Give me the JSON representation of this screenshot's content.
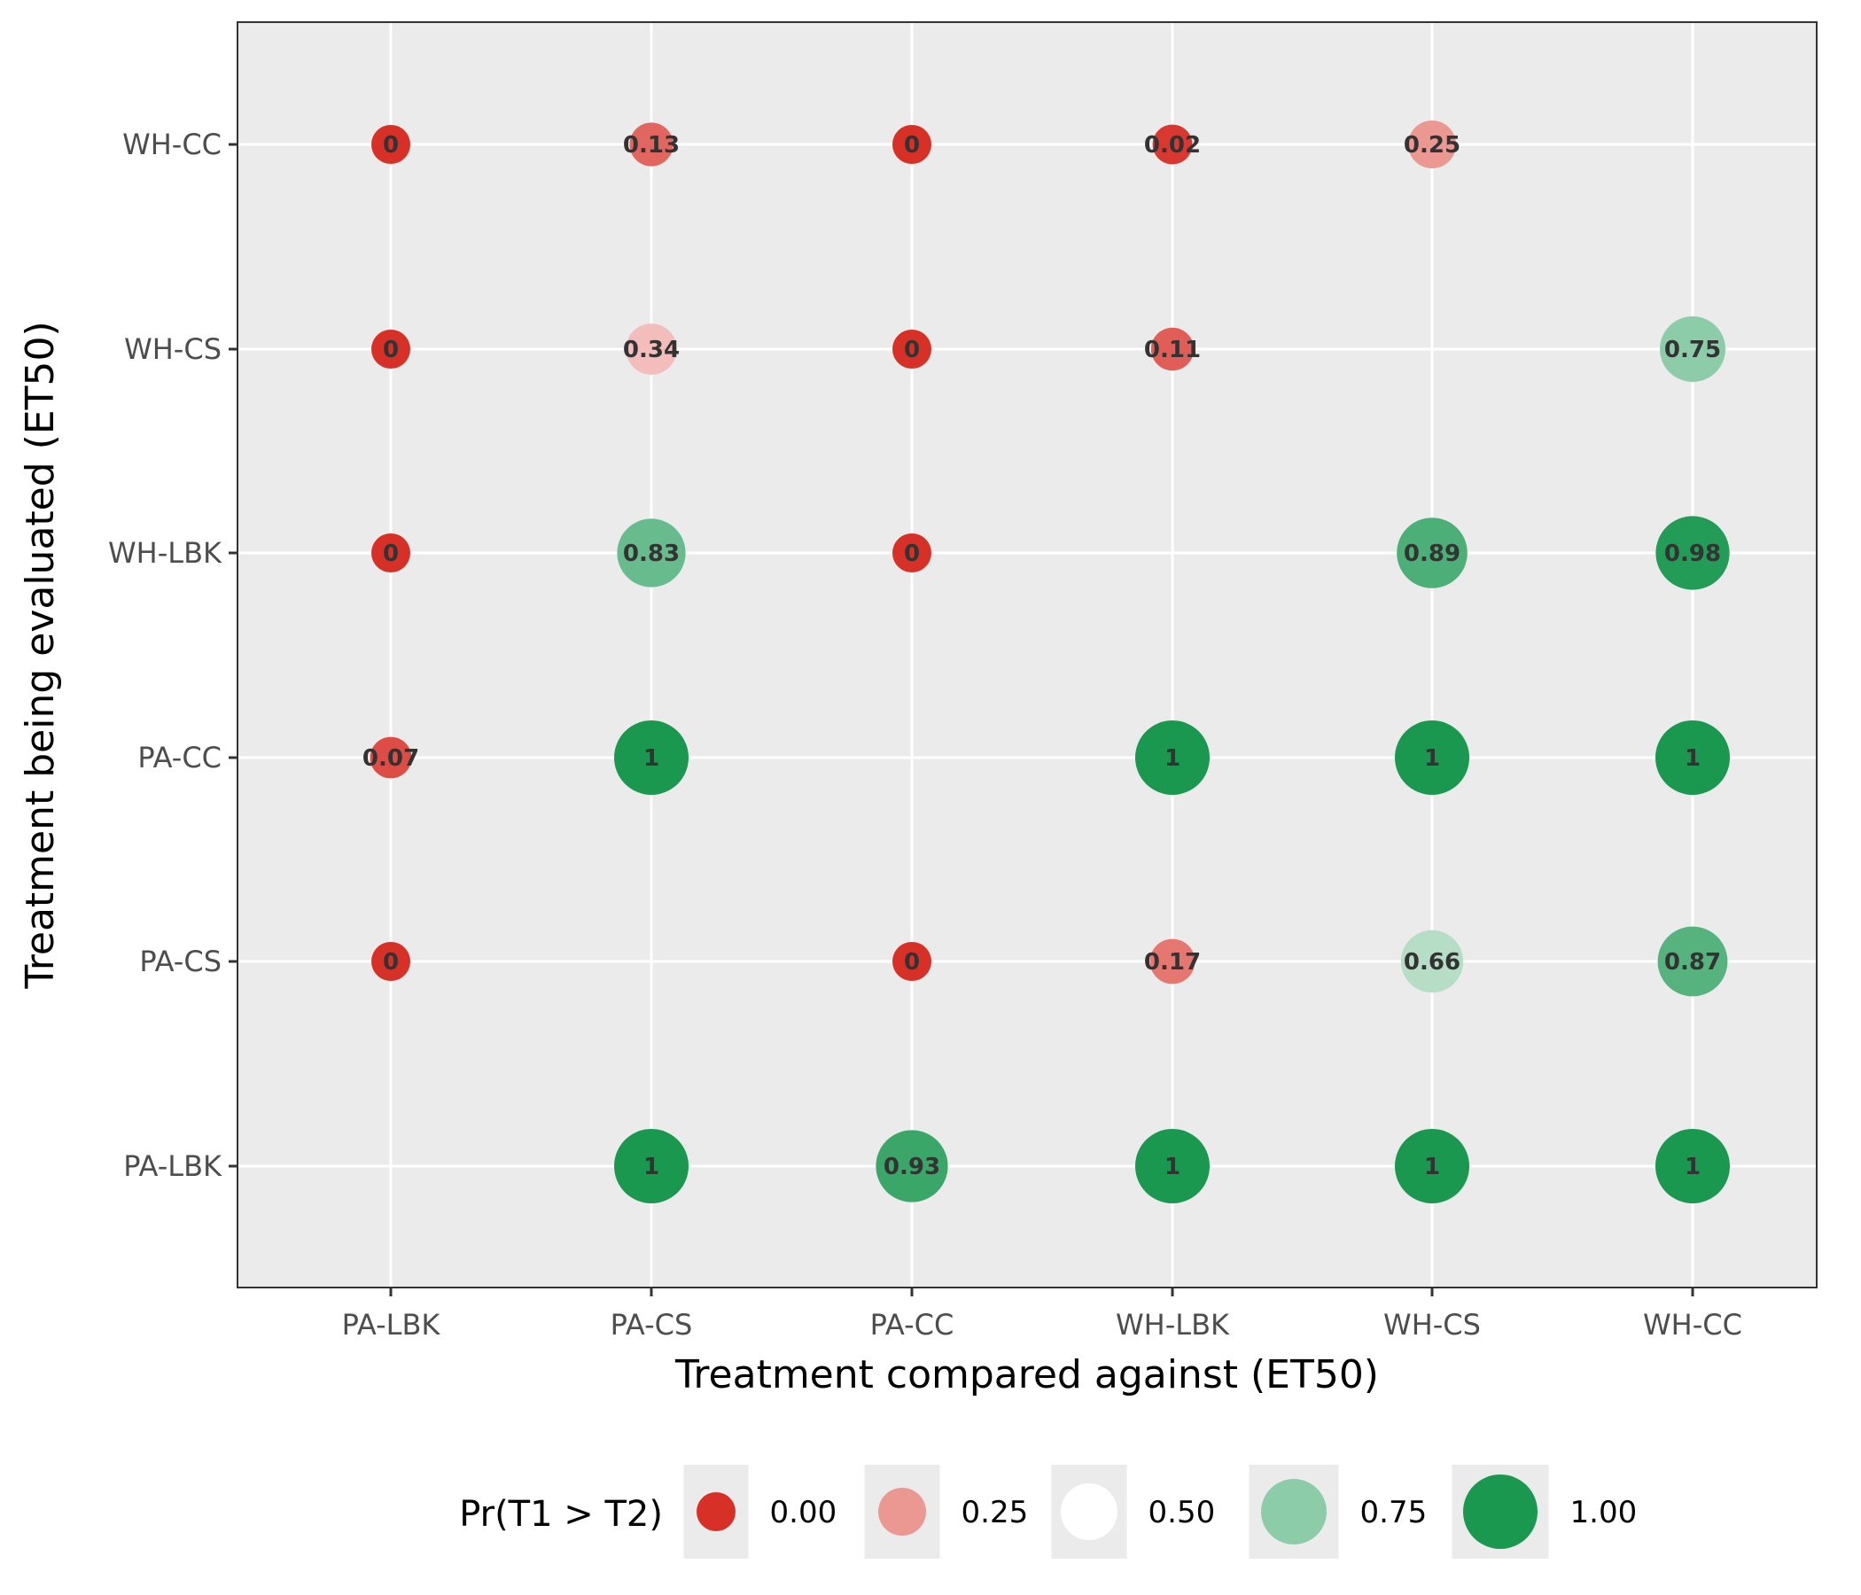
{
  "chart_data": {
    "type": "scatter",
    "xlabel": "Treatment compared against (ET50)",
    "ylabel": "Treatment being evaluated (ET50)",
    "x_categories": [
      "PA-LBK",
      "PA-CS",
      "PA-CC",
      "WH-LBK",
      "WH-CS",
      "WH-CC"
    ],
    "y_categories": [
      "PA-LBK",
      "PA-CS",
      "PA-CC",
      "WH-LBK",
      "WH-CS",
      "WH-CC"
    ],
    "grid": true,
    "legend_position": "bottom",
    "legend": {
      "title": "Pr(T1 > T2)",
      "values": [
        0.0,
        0.25,
        0.5,
        0.75,
        1.0
      ],
      "labels": [
        "0.00",
        "0.25",
        "0.50",
        "0.75",
        "1.00"
      ]
    },
    "color_scale": {
      "low": "#d73027",
      "mid": "#ffffff",
      "high": "#1a9850"
    },
    "points": [
      {
        "x": "PA-LBK",
        "y": "WH-CC",
        "value": 0,
        "label": "0"
      },
      {
        "x": "PA-CS",
        "y": "WH-CC",
        "value": 0.13,
        "label": "0.13"
      },
      {
        "x": "PA-CC",
        "y": "WH-CC",
        "value": 0,
        "label": "0"
      },
      {
        "x": "WH-LBK",
        "y": "WH-CC",
        "value": 0.02,
        "label": "0.02"
      },
      {
        "x": "WH-CS",
        "y": "WH-CC",
        "value": 0.25,
        "label": "0.25"
      },
      {
        "x": "PA-LBK",
        "y": "WH-CS",
        "value": 0,
        "label": "0"
      },
      {
        "x": "PA-CS",
        "y": "WH-CS",
        "value": 0.34,
        "label": "0.34"
      },
      {
        "x": "PA-CC",
        "y": "WH-CS",
        "value": 0,
        "label": "0"
      },
      {
        "x": "WH-LBK",
        "y": "WH-CS",
        "value": 0.11,
        "label": "0.11"
      },
      {
        "x": "WH-CC",
        "y": "WH-CS",
        "value": 0.75,
        "label": "0.75"
      },
      {
        "x": "PA-LBK",
        "y": "WH-LBK",
        "value": 0,
        "label": "0"
      },
      {
        "x": "PA-CS",
        "y": "WH-LBK",
        "value": 0.83,
        "label": "0.83"
      },
      {
        "x": "PA-CC",
        "y": "WH-LBK",
        "value": 0,
        "label": "0"
      },
      {
        "x": "WH-CS",
        "y": "WH-LBK",
        "value": 0.89,
        "label": "0.89"
      },
      {
        "x": "WH-CC",
        "y": "WH-LBK",
        "value": 0.98,
        "label": "0.98"
      },
      {
        "x": "PA-LBK",
        "y": "PA-CC",
        "value": 0.07,
        "label": "0.07"
      },
      {
        "x": "PA-CS",
        "y": "PA-CC",
        "value": 1,
        "label": "1"
      },
      {
        "x": "WH-LBK",
        "y": "PA-CC",
        "value": 1,
        "label": "1"
      },
      {
        "x": "WH-CS",
        "y": "PA-CC",
        "value": 1,
        "label": "1"
      },
      {
        "x": "WH-CC",
        "y": "PA-CC",
        "value": 1,
        "label": "1"
      },
      {
        "x": "PA-LBK",
        "y": "PA-CS",
        "value": 0,
        "label": "0"
      },
      {
        "x": "PA-CC",
        "y": "PA-CS",
        "value": 0,
        "label": "0"
      },
      {
        "x": "WH-LBK",
        "y": "PA-CS",
        "value": 0.17,
        "label": "0.17"
      },
      {
        "x": "WH-CS",
        "y": "PA-CS",
        "value": 0.66,
        "label": "0.66"
      },
      {
        "x": "WH-CC",
        "y": "PA-CS",
        "value": 0.87,
        "label": "0.87"
      },
      {
        "x": "PA-CS",
        "y": "PA-LBK",
        "value": 1,
        "label": "1"
      },
      {
        "x": "PA-CC",
        "y": "PA-LBK",
        "value": 0.93,
        "label": "0.93"
      },
      {
        "x": "WH-LBK",
        "y": "PA-LBK",
        "value": 1,
        "label": "1"
      },
      {
        "x": "WH-CS",
        "y": "PA-LBK",
        "value": 1,
        "label": "1"
      },
      {
        "x": "WH-CC",
        "y": "PA-LBK",
        "value": 1,
        "label": "1"
      }
    ]
  }
}
